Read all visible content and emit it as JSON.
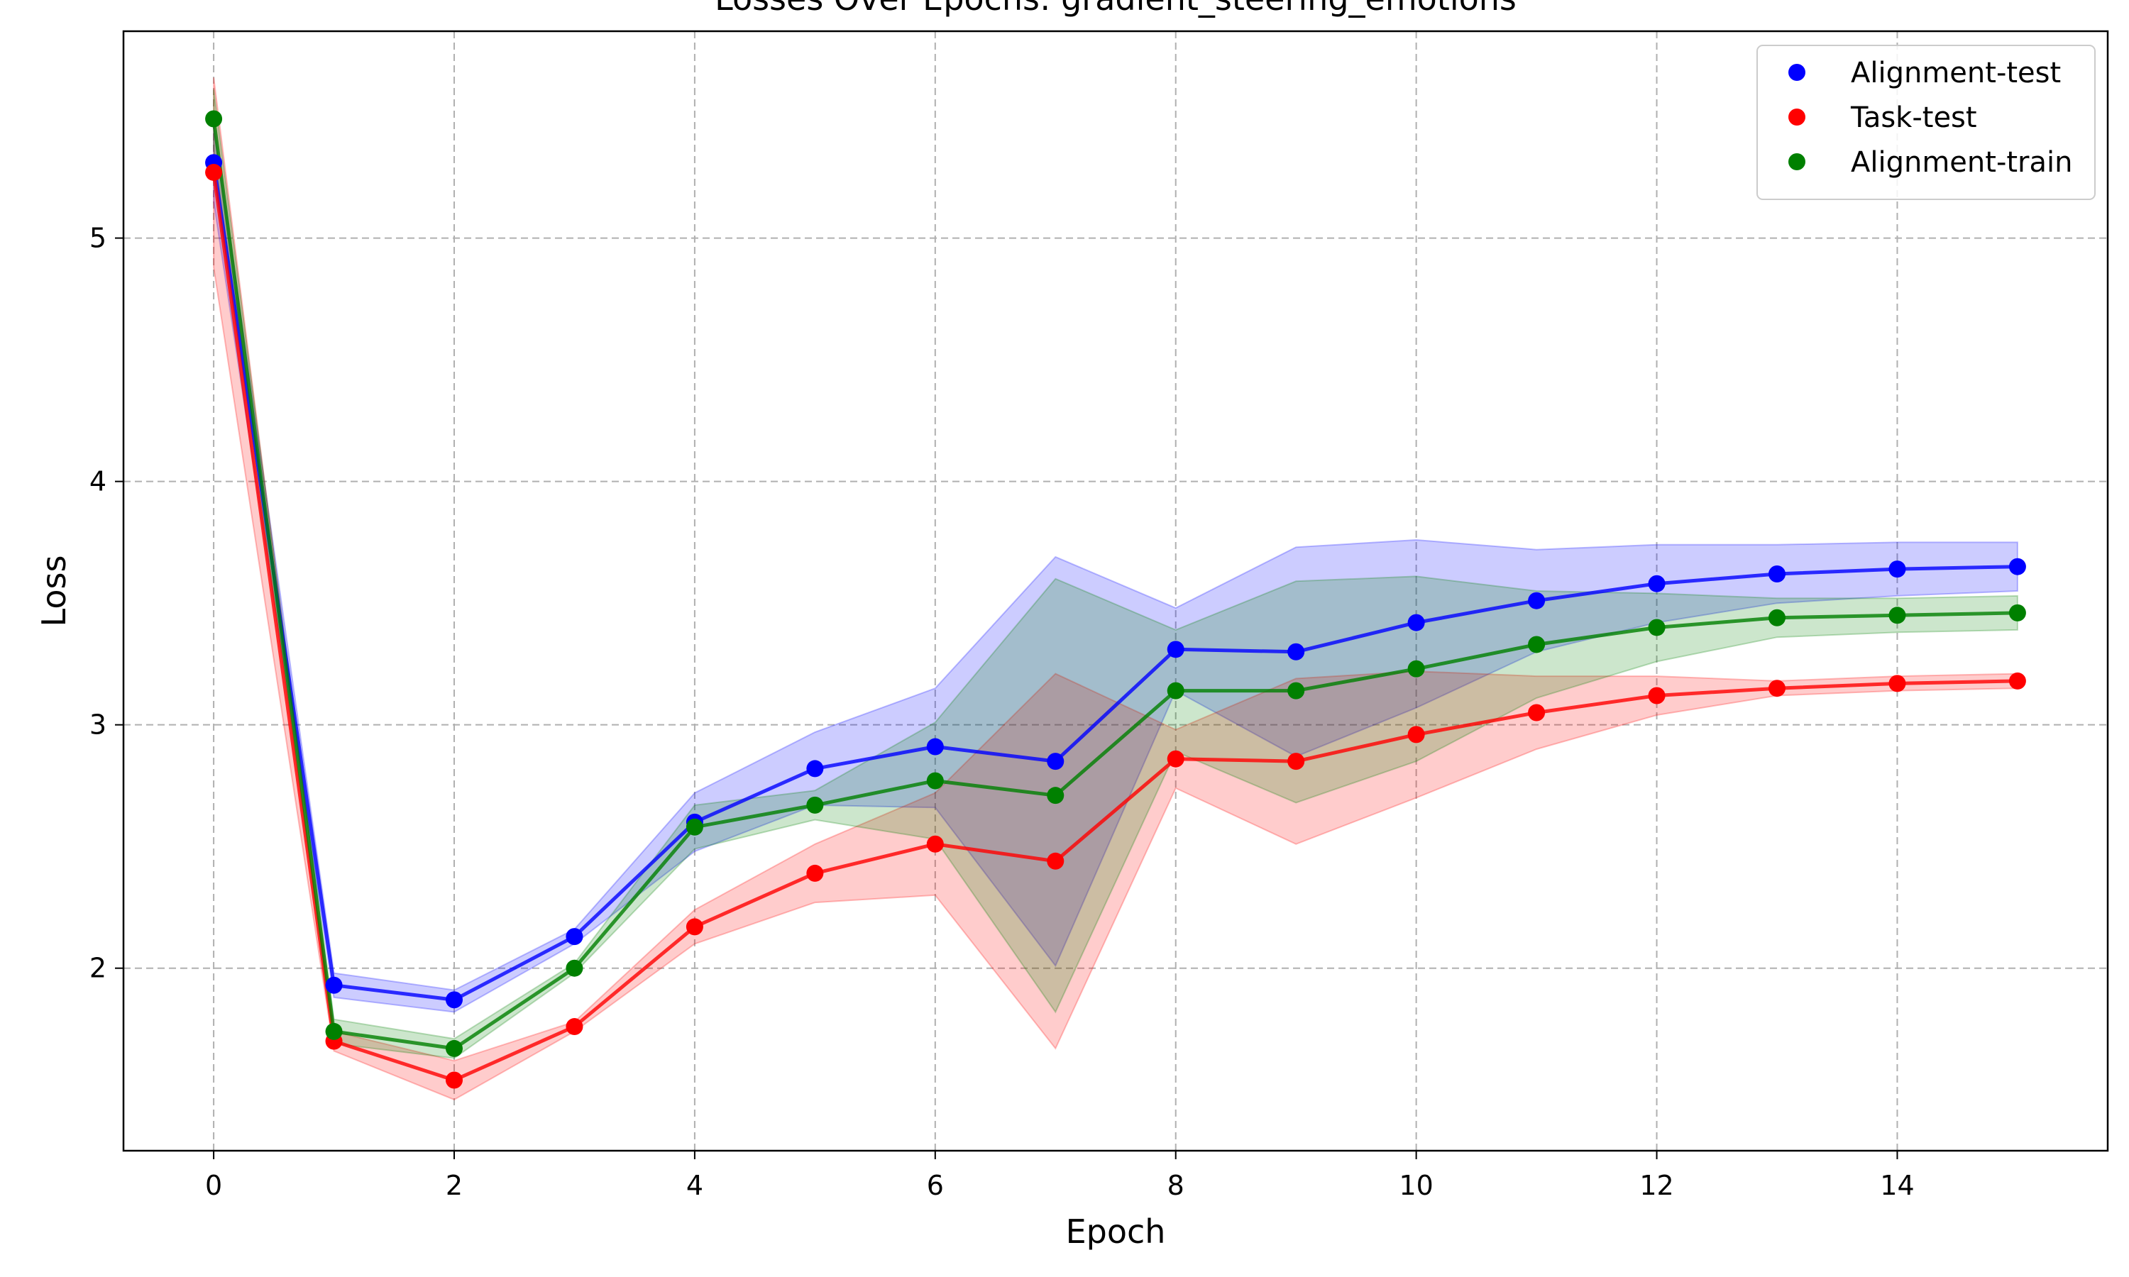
{
  "chart_data": {
    "type": "line",
    "title": "Losses Over Epochs: gradient_steering_emotions",
    "xlabel": "Epoch",
    "ylabel": "Loss",
    "xlim": [
      -0.75,
      15.75
    ],
    "ylim": [
      1.25,
      5.85
    ],
    "x_ticks": [
      0,
      2,
      4,
      6,
      8,
      10,
      12,
      14
    ],
    "y_ticks": [
      2,
      3,
      4,
      5
    ],
    "grid": true,
    "legend_position": "top-right",
    "x": [
      0,
      1,
      2,
      3,
      4,
      5,
      6,
      7,
      8,
      9,
      10,
      11,
      12,
      13,
      14,
      15
    ],
    "series": [
      {
        "name": "Alignment-test",
        "color": "#0000ff",
        "values": [
          5.31,
          1.93,
          1.87,
          2.13,
          2.6,
          2.82,
          2.91,
          2.85,
          3.31,
          3.3,
          3.42,
          3.51,
          3.58,
          3.62,
          3.64,
          3.65
        ],
        "lower": [
          5.15,
          1.88,
          1.82,
          2.1,
          2.48,
          2.67,
          2.66,
          2.01,
          3.14,
          2.87,
          3.07,
          3.3,
          3.42,
          3.5,
          3.53,
          3.55
        ],
        "upper": [
          5.47,
          1.98,
          1.91,
          2.16,
          2.72,
          2.97,
          3.15,
          3.69,
          3.48,
          3.73,
          3.76,
          3.72,
          3.74,
          3.74,
          3.75,
          3.75
        ]
      },
      {
        "name": "Task-test",
        "color": "#ff0000",
        "values": [
          5.27,
          1.7,
          1.54,
          1.76,
          2.17,
          2.39,
          2.51,
          2.44,
          2.86,
          2.85,
          2.96,
          3.05,
          3.12,
          3.15,
          3.17,
          3.18
        ],
        "lower": [
          4.88,
          1.66,
          1.46,
          1.74,
          2.1,
          2.27,
          2.3,
          1.67,
          2.74,
          2.51,
          2.7,
          2.9,
          3.04,
          3.12,
          3.14,
          3.15
        ],
        "upper": [
          5.66,
          1.74,
          1.62,
          1.78,
          2.24,
          2.51,
          2.72,
          3.21,
          2.98,
          3.19,
          3.22,
          3.2,
          3.2,
          3.18,
          3.2,
          3.21
        ]
      },
      {
        "name": "Alignment-train",
        "color": "#008000",
        "values": [
          5.49,
          1.74,
          1.67,
          2.0,
          2.58,
          2.67,
          2.77,
          2.71,
          3.14,
          3.14,
          3.23,
          3.33,
          3.4,
          3.44,
          3.45,
          3.46
        ],
        "lower": [
          5.37,
          1.69,
          1.63,
          1.98,
          2.49,
          2.61,
          2.53,
          1.82,
          2.89,
          2.68,
          2.85,
          3.11,
          3.26,
          3.36,
          3.38,
          3.39
        ],
        "upper": [
          5.61,
          1.79,
          1.71,
          2.02,
          2.67,
          2.73,
          3.01,
          3.6,
          3.39,
          3.59,
          3.61,
          3.55,
          3.54,
          3.52,
          3.52,
          3.53
        ]
      }
    ]
  }
}
